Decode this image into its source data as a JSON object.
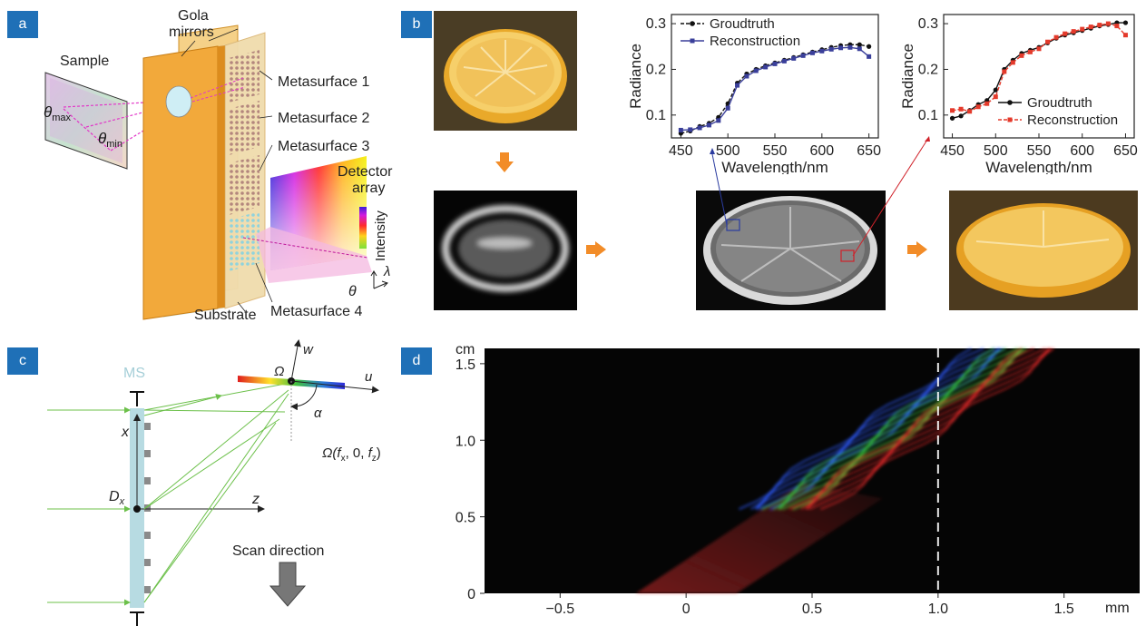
{
  "panels": {
    "a": "a",
    "b": "b",
    "c": "c",
    "d": "d"
  },
  "panel_a": {
    "sample_label": "Sample",
    "theta_max": {
      "symbol": "θ",
      "sub": "max"
    },
    "theta_min": {
      "symbol": "θ",
      "sub": "min"
    },
    "gola_line1": "Gola",
    "gola_line2": "mirrors",
    "metasurfaces": [
      "Metasurface 1",
      "Metasurface 2",
      "Metasurface 3",
      "Metasurface 4"
    ],
    "detector_line1": "Detector",
    "detector_line2": "array",
    "intensity_label": "Intensity",
    "lambda_symbol": "λ",
    "theta_symbol": "θ",
    "substrate_label": "Substrate",
    "colors": {
      "mirror": "#f2a93b",
      "substrate": "#cfe9f0",
      "metasurface": "#c9a9a3"
    }
  },
  "panel_b": {
    "charts": [
      {
        "type": "line",
        "xlabel": "Wavelength/nm",
        "ylabel": "Radiance",
        "xlim": [
          440,
          660
        ],
        "ylim": [
          0.05,
          0.32
        ],
        "xticks": [
          450,
          500,
          550,
          600,
          650
        ],
        "yticks": [
          0.1,
          0.2,
          0.3
        ],
        "legend_position": "top-left",
        "series": [
          {
            "name": "Groudtruth",
            "color": "#111111",
            "marker": "circle",
            "dashed": true,
            "x": [
              450,
              460,
              470,
              480,
              490,
              500,
              510,
              520,
              530,
              540,
              550,
              560,
              570,
              580,
              590,
              600,
              610,
              620,
              630,
              640,
              650
            ],
            "y": [
              0.06,
              0.065,
              0.075,
              0.082,
              0.095,
              0.125,
              0.17,
              0.19,
              0.2,
              0.208,
              0.214,
              0.22,
              0.226,
              0.232,
              0.238,
              0.243,
              0.248,
              0.252,
              0.254,
              0.254,
              0.25
            ]
          },
          {
            "name": "Reconstruction",
            "color": "#3a3f9a",
            "marker": "square",
            "dashed": false,
            "x": [
              450,
              460,
              470,
              480,
              490,
              500,
              510,
              520,
              530,
              540,
              550,
              560,
              570,
              580,
              590,
              600,
              610,
              620,
              630,
              640,
              650
            ],
            "y": [
              0.067,
              0.068,
              0.072,
              0.078,
              0.088,
              0.115,
              0.165,
              0.185,
              0.197,
              0.205,
              0.212,
              0.218,
              0.224,
              0.23,
              0.236,
              0.24,
              0.244,
              0.247,
              0.248,
              0.245,
              0.228
            ]
          }
        ]
      },
      {
        "type": "line",
        "xlabel": "Wavelength/nm",
        "ylabel": "Radiance",
        "xlim": [
          440,
          660
        ],
        "ylim": [
          0.05,
          0.32
        ],
        "xticks": [
          450,
          500,
          550,
          600,
          650
        ],
        "yticks": [
          0.1,
          0.2,
          0.3
        ],
        "legend_position": "bottom-right",
        "series": [
          {
            "name": "Groudtruth",
            "color": "#111111",
            "marker": "circle",
            "dashed": false,
            "x": [
              450,
              460,
              470,
              480,
              490,
              500,
              510,
              520,
              530,
              540,
              550,
              560,
              570,
              580,
              590,
              600,
              610,
              620,
              630,
              640,
              650
            ],
            "y": [
              0.093,
              0.098,
              0.11,
              0.123,
              0.132,
              0.155,
              0.2,
              0.22,
              0.235,
              0.242,
              0.248,
              0.258,
              0.268,
              0.275,
              0.28,
              0.285,
              0.29,
              0.295,
              0.298,
              0.302,
              0.302
            ]
          },
          {
            "name": "Reconstruction",
            "color": "#e43a2b",
            "marker": "square",
            "dashed": true,
            "x": [
              450,
              460,
              470,
              480,
              490,
              500,
              510,
              520,
              530,
              540,
              550,
              560,
              570,
              580,
              590,
              600,
              610,
              620,
              630,
              640,
              650
            ],
            "y": [
              0.11,
              0.113,
              0.108,
              0.118,
              0.125,
              0.14,
              0.195,
              0.215,
              0.23,
              0.238,
              0.245,
              0.26,
              0.27,
              0.278,
              0.283,
              0.288,
              0.293,
              0.297,
              0.3,
              0.295,
              0.275
            ]
          }
        ]
      }
    ],
    "arrow_color": "#f28c28",
    "link_colors": [
      "#2b3ca0",
      "#d0222a"
    ]
  },
  "panel_c": {
    "ms_label": "MS",
    "x_label": "x",
    "z_label": "z",
    "w_label": "w",
    "u_label": "u",
    "omega_label": "Ω",
    "alpha_label": "α",
    "dx_label": {
      "symbol": "D",
      "sub": "x"
    },
    "omega_coord": {
      "prefix": "Ω(",
      "fx": "f",
      "fx_sub": "x",
      "mid": ", 0, ",
      "fz": "f",
      "fz_sub": "z",
      "suffix": ")"
    },
    "scan_label": "Scan direction",
    "ray_color": "#6cc04a"
  },
  "panel_d": {
    "y_unit": "cm",
    "x_unit": "mm",
    "xticks": [
      "−0.5",
      "0",
      "0.5",
      "1.0",
      "1.5"
    ],
    "yticks": [
      "1.5",
      "1.0",
      "0.5",
      "0"
    ],
    "marker_x_value": 1.0,
    "xlim": [
      -0.8,
      1.8
    ],
    "ylim": [
      0,
      1.6
    ]
  }
}
